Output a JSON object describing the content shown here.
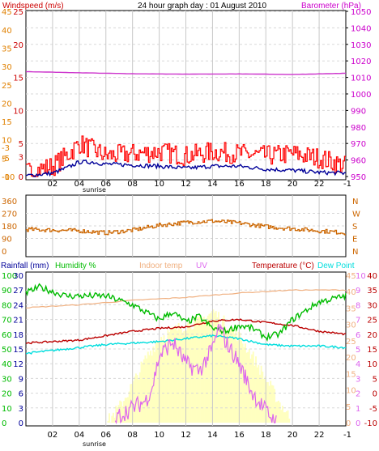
{
  "title": "24 hour graph day : 01 August 2010",
  "colors": {
    "windspeed_axis": "#cc0000",
    "beaufort_axis": "#e08000",
    "barometer_axis": "#cc00cc",
    "gust": "#ff0000",
    "avg_wind": "#000099",
    "barometer": "#cc33cc",
    "wind_dir": "#cc6600",
    "humidity": "#00bb00",
    "indoor_temp": "#f0b080",
    "temperature": "#bb0000",
    "dew_point": "#00dddd",
    "uv": "#dd66ee",
    "solar": "#ffffc0",
    "rainfall_axis": "#000099"
  },
  "chart_data": [
    {
      "type": "line",
      "panel": "wind-barometer",
      "left_axis_label": "Windspeed (m/s)",
      "right_axis_label": "Barometer (hPa)",
      "windspeed_ticks": [
        "-10",
        "-5",
        "-3",
        "-0",
        "5",
        "10",
        "15",
        "20",
        "25",
        "30",
        "35",
        "40",
        "45"
      ],
      "beaufort_ticks": [
        "0",
        "3",
        "5",
        "10",
        "15",
        "20",
        "25"
      ],
      "barometer_ticks": [
        "950",
        "960",
        "970",
        "980",
        "990",
        "1000",
        "1010",
        "1020",
        "1030",
        "1040",
        "1050"
      ],
      "ylim_barometer": [
        950,
        1050
      ],
      "x_ticks": [
        "02",
        "04",
        "06",
        "08",
        "10",
        "12",
        "14",
        "16",
        "18",
        "20",
        "22"
      ],
      "x_annotation": "sunrise",
      "x_end_label": "-1",
      "series": [
        {
          "name": "Barometer",
          "x": [
            0,
            4,
            8,
            12,
            16,
            20,
            24
          ],
          "values": [
            1013.5,
            1012.8,
            1012.2,
            1012.0,
            1012.1,
            1011.8,
            1012.5
          ]
        },
        {
          "name": "Gust",
          "x": [
            0,
            2,
            3,
            4,
            5,
            6,
            8,
            10,
            12,
            14,
            16,
            18,
            20,
            22,
            23,
            24
          ],
          "values": [
            1.0,
            2.5,
            5.0,
            8.0,
            6.5,
            5.0,
            5.5,
            6.0,
            5.0,
            6.0,
            5.5,
            5.0,
            5.5,
            4.5,
            3.5,
            2.5
          ]
        },
        {
          "name": "Average",
          "x": [
            0,
            2,
            3,
            4,
            5,
            6,
            8,
            10,
            12,
            14,
            16,
            18,
            20,
            22,
            24
          ],
          "values": [
            0.2,
            0.8,
            2.0,
            3.5,
            3.5,
            3.0,
            2.8,
            2.5,
            2.0,
            2.5,
            2.5,
            1.8,
            1.5,
            1.0,
            0.8
          ]
        }
      ]
    },
    {
      "type": "line",
      "panel": "wind-direction",
      "left_ticks": [
        "0",
        "90",
        "180",
        "270",
        "360"
      ],
      "right_ticks": [
        "N",
        "E",
        "S",
        "W",
        "N"
      ],
      "ylim": [
        0,
        360
      ],
      "series": [
        {
          "name": "Direction",
          "x": [
            0,
            2,
            4,
            6,
            8,
            10,
            12,
            14,
            16,
            18,
            20,
            22,
            24
          ],
          "values": [
            155,
            150,
            145,
            130,
            150,
            185,
            205,
            215,
            200,
            175,
            160,
            145,
            130
          ]
        }
      ]
    },
    {
      "type": "line",
      "panel": "temperature-humidity",
      "legend": [
        "Rainfall (mm)",
        "Humidity %",
        "Indoor temp",
        "UV",
        "Temperature (°C)",
        "Dew Point"
      ],
      "rain_ticks": [
        "0",
        "3",
        "6",
        "9",
        "12",
        "15",
        "18",
        "21",
        "24",
        "27",
        "30"
      ],
      "humidity_ticks": [
        "0",
        "10",
        "20",
        "30",
        "40",
        "50",
        "60",
        "70",
        "80",
        "90",
        "100"
      ],
      "solar_ticks": [
        "0",
        "5",
        "10",
        "15",
        "20",
        "25",
        "30",
        "35",
        "40",
        "45"
      ],
      "uv_ticks": [
        "0",
        "1",
        "2",
        "3",
        "4",
        "5",
        "6",
        "7",
        "8",
        "9",
        "10"
      ],
      "temp_ticks": [
        "-10",
        "-5",
        "0",
        "5",
        "10",
        "15",
        "20",
        "25",
        "30",
        "35",
        "40"
      ],
      "ylim_temperature": [
        -10,
        40
      ],
      "series": [
        {
          "name": "Humidity %",
          "x": [
            0,
            1,
            3,
            6,
            8,
            10,
            11,
            12,
            13,
            14,
            15,
            16,
            17,
            18,
            19,
            20,
            22,
            24
          ],
          "values": [
            88,
            92,
            86,
            86,
            80,
            70,
            75,
            68,
            72,
            64,
            62,
            66,
            64,
            58,
            60,
            70,
            82,
            86
          ]
        },
        {
          "name": "Indoor temp",
          "x": [
            0,
            4,
            8,
            12,
            16,
            20,
            24
          ],
          "values": [
            29.0,
            30.0,
            31.5,
            32.5,
            34.0,
            35.0,
            35.0
          ]
        },
        {
          "name": "Temperature (°C)",
          "x": [
            0,
            2,
            4,
            6,
            8,
            10,
            12,
            14,
            16,
            18,
            20,
            22,
            24
          ],
          "values": [
            17.0,
            17.5,
            18.0,
            19.5,
            21.0,
            22.0,
            22.5,
            24.5,
            25.0,
            24.0,
            23.0,
            21.0,
            20.0
          ]
        },
        {
          "name": "Dew Point",
          "x": [
            0,
            2,
            4,
            6,
            8,
            10,
            12,
            14,
            16,
            18,
            20,
            22,
            24
          ],
          "values": [
            13.5,
            14.5,
            15.5,
            16.5,
            17.0,
            17.5,
            18.5,
            19.5,
            18.5,
            16.5,
            16.0,
            16.0,
            15.5
          ]
        },
        {
          "name": "UV",
          "x": [
            6.7,
            7.0,
            8.0,
            9.0,
            9.5,
            10.0,
            11.0,
            12.0,
            13.0,
            14.0,
            14.5,
            15.0,
            16.0,
            17.0,
            18.0,
            18.8
          ],
          "values": [
            0,
            0.5,
            1.0,
            1.5,
            2.5,
            4.5,
            5.5,
            4.0,
            3.5,
            5.0,
            6.5,
            5.5,
            4.0,
            2.0,
            0.8,
            0
          ]
        },
        {
          "name": "Solar",
          "x": [
            6,
            7,
            8,
            9,
            10,
            11,
            12,
            13,
            14,
            15,
            16,
            17,
            18,
            19,
            20
          ],
          "values": [
            0,
            5,
            12,
            20,
            26,
            28,
            30,
            31,
            34,
            30,
            26,
            20,
            13,
            6,
            0
          ]
        }
      ]
    }
  ]
}
